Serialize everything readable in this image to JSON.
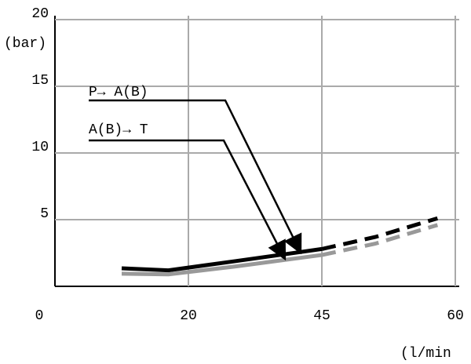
{
  "chart_data": {
    "type": "line",
    "ylabel": "(bar)",
    "xlabel": "(l/min",
    "xlim": [
      0,
      60
    ],
    "xticks": [
      0,
      20,
      45,
      60
    ],
    "ylim": [
      0,
      20
    ],
    "yticks": [
      5,
      10,
      15,
      20
    ],
    "grid": true,
    "x": [
      10,
      17,
      29,
      45,
      51,
      58
    ],
    "dashed": [
      false,
      false,
      false,
      false,
      true,
      true
    ],
    "series": [
      {
        "name": "P→ A(B)",
        "color": "#000000",
        "values": [
          1.35,
          1.2,
          1.9,
          2.8,
          3.7,
          5.1
        ]
      },
      {
        "name": "A(B)→ T",
        "color": "#999999",
        "values": [
          0.95,
          0.9,
          1.5,
          2.35,
          3.2,
          4.6
        ]
      }
    ]
  }
}
